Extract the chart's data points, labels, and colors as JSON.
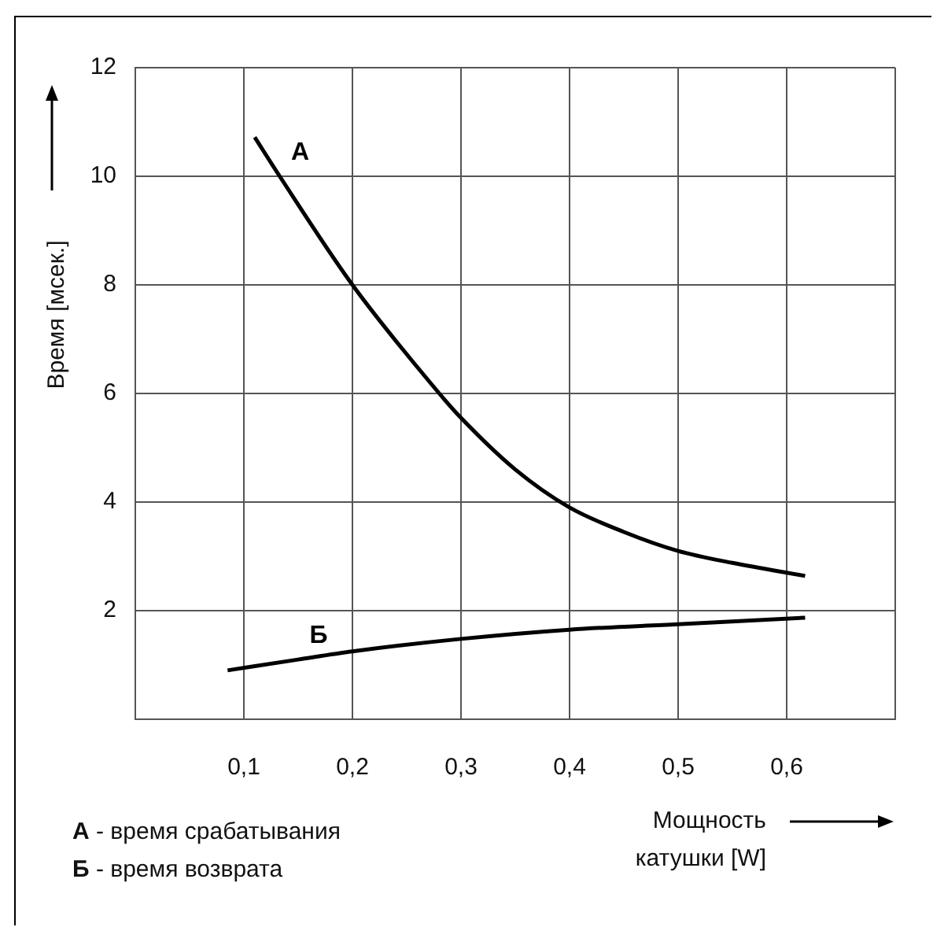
{
  "chart_data": {
    "type": "line",
    "xlabel": "Мощность катушки [W]",
    "ylabel": "Время [мсек.]",
    "xlim": [
      0,
      0.7
    ],
    "xticks": [
      {
        "value": 0,
        "label": null
      },
      {
        "value": 0.1,
        "label": "0,1"
      },
      {
        "value": 0.2,
        "label": "0,2"
      },
      {
        "value": 0.3,
        "label": "0,3"
      },
      {
        "value": 0.4,
        "label": "0,4"
      },
      {
        "value": 0.5,
        "label": "0,5"
      },
      {
        "value": 0.6,
        "label": "0,6"
      },
      {
        "value": 0.7,
        "label": null
      }
    ],
    "ylim": [
      0,
      12
    ],
    "yticks": [
      {
        "value": 0,
        "label": null
      },
      2,
      4,
      6,
      8,
      10,
      12
    ],
    "grid": true,
    "legend": false,
    "marker": "none",
    "line_style": "solid",
    "series": [
      {
        "name": "А",
        "color": "#000000",
        "x": [
          0.11,
          0.133,
          0.2,
          0.28,
          0.3,
          0.35,
          0.4,
          0.45,
          0.5,
          0.55,
          0.617
        ],
        "values": [
          10.72,
          10,
          8,
          6,
          5.55,
          4.6,
          3.9,
          3.45,
          3.1,
          2.88,
          2.64
        ]
      },
      {
        "name": "Б",
        "color": "#000000",
        "x": [
          0.085,
          0.15,
          0.2,
          0.3,
          0.4,
          0.5,
          0.617
        ],
        "values": [
          0.9,
          1.1,
          1.25,
          1.48,
          1.65,
          1.75,
          1.87
        ]
      }
    ],
    "annotations": [
      "А - время срабатывания",
      "Б - время возврата"
    ]
  }
}
